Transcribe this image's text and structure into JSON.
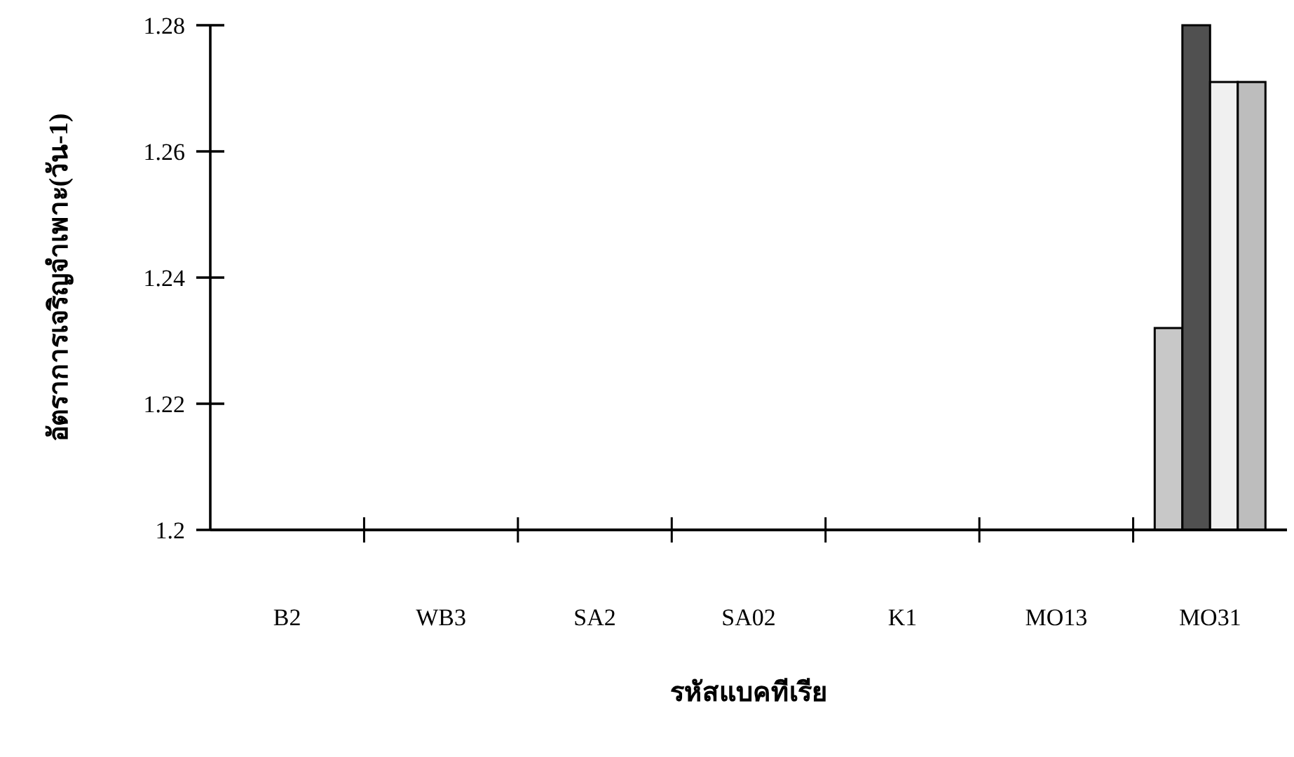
{
  "chart_data": {
    "type": "bar",
    "xlabel": "รหัสแบคทีเรีย",
    "ylabel": "อัตราการเจริญจำเพาะ(วัน-1)",
    "categories": [
      "B2",
      "WB3",
      "SA2",
      "SA02",
      "K1",
      "MO13",
      "MO31"
    ],
    "series": [
      {
        "color": "#c8c8c8",
        "values": [
          null,
          null,
          null,
          null,
          null,
          null,
          1.232
        ]
      },
      {
        "color": "#505050",
        "values": [
          null,
          null,
          null,
          null,
          null,
          null,
          1.28
        ]
      },
      {
        "color": "#f0f0f0",
        "values": [
          null,
          null,
          null,
          null,
          null,
          null,
          1.271
        ]
      },
      {
        "color": "#bdbdbd",
        "values": [
          null,
          null,
          null,
          null,
          null,
          null,
          1.271
        ]
      }
    ],
    "ylim": [
      1.2,
      1.28
    ],
    "yticks": [
      1.2,
      1.22,
      1.24,
      1.26,
      1.28
    ],
    "grid": false
  }
}
